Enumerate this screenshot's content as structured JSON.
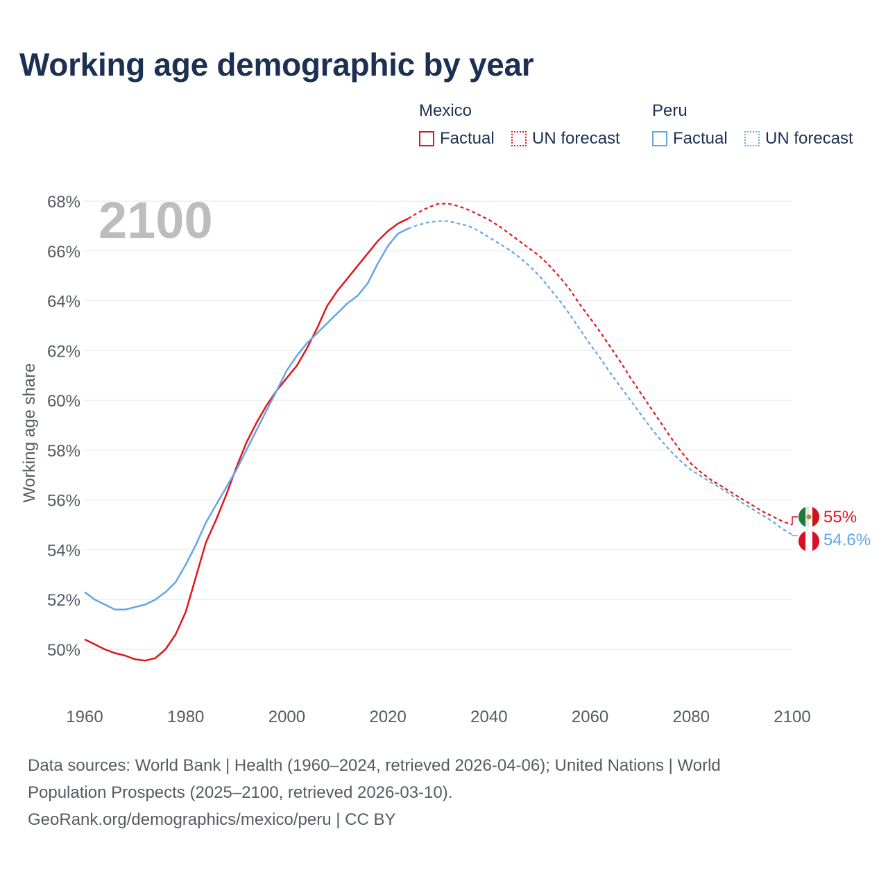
{
  "title": "Working age demographic by year",
  "legend": {
    "mexico": {
      "title": "Mexico",
      "factual": "Factual",
      "forecast": "UN forecast",
      "color": "#e3141b"
    },
    "peru": {
      "title": "Peru",
      "factual": "Factual",
      "forecast": "UN forecast",
      "color": "#63a6e3"
    }
  },
  "chart_data": {
    "type": "line",
    "title": "Working age demographic by year",
    "xlabel": "",
    "ylabel": "Working age share",
    "xlim": [
      1960,
      2100
    ],
    "ylim": [
      48,
      68
    ],
    "x_ticks": [
      1960,
      1980,
      2000,
      2020,
      2040,
      2060,
      2080,
      2100
    ],
    "x_tick_labels": [
      "1960",
      "1980",
      "2000",
      "2020",
      "2040",
      "2060",
      "2080",
      "2100"
    ],
    "y_ticks": [
      50,
      52,
      54,
      56,
      58,
      60,
      62,
      64,
      66,
      68
    ],
    "y_tick_labels": [
      "50%",
      "52%",
      "54%",
      "56%",
      "58%",
      "60%",
      "62%",
      "64%",
      "66%",
      "68%"
    ],
    "year_label": "2100",
    "series": [
      {
        "name": "Mexico",
        "color": "#e3141b",
        "end_label": "55%",
        "factual": {
          "x": [
            1960,
            1962,
            1964,
            1966,
            1968,
            1970,
            1972,
            1974,
            1976,
            1978,
            1980,
            1982,
            1984,
            1986,
            1988,
            1990,
            1992,
            1994,
            1996,
            1998,
            2000,
            2002,
            2004,
            2006,
            2008,
            2010,
            2012,
            2014,
            2016,
            2018,
            2020,
            2022,
            2024
          ],
          "y": [
            50.4,
            50.2,
            50.0,
            49.85,
            49.75,
            49.6,
            49.55,
            49.65,
            50.0,
            50.6,
            51.5,
            52.9,
            54.3,
            55.2,
            56.2,
            57.3,
            58.3,
            59.1,
            59.8,
            60.4,
            60.9,
            61.4,
            62.1,
            62.9,
            63.8,
            64.4,
            64.9,
            65.4,
            65.9,
            66.4,
            66.8,
            67.1,
            67.3
          ]
        },
        "forecast": {
          "x": [
            2024,
            2026,
            2028,
            2030,
            2032,
            2034,
            2036,
            2038,
            2040,
            2042,
            2044,
            2046,
            2048,
            2050,
            2052,
            2054,
            2056,
            2058,
            2060,
            2062,
            2064,
            2066,
            2068,
            2070,
            2072,
            2074,
            2076,
            2078,
            2080,
            2082,
            2084,
            2086,
            2088,
            2090,
            2092,
            2094,
            2096,
            2098,
            2100
          ],
          "y": [
            67.3,
            67.55,
            67.75,
            67.9,
            67.9,
            67.8,
            67.65,
            67.45,
            67.25,
            67.0,
            66.7,
            66.4,
            66.1,
            65.8,
            65.4,
            64.95,
            64.45,
            63.85,
            63.3,
            62.75,
            62.15,
            61.55,
            60.9,
            60.3,
            59.7,
            59.1,
            58.5,
            57.95,
            57.45,
            57.1,
            56.8,
            56.55,
            56.3,
            56.05,
            55.8,
            55.55,
            55.35,
            55.15,
            55.0
          ]
        }
      },
      {
        "name": "Peru",
        "color": "#63a6e3",
        "end_label": "54.6%",
        "factual": {
          "x": [
            1960,
            1962,
            1964,
            1966,
            1968,
            1970,
            1972,
            1974,
            1976,
            1978,
            1980,
            1982,
            1984,
            1986,
            1988,
            1990,
            1992,
            1994,
            1996,
            1998,
            2000,
            2002,
            2004,
            2006,
            2008,
            2010,
            2012,
            2014,
            2016,
            2018,
            2020,
            2022,
            2024
          ],
          "y": [
            52.3,
            52.0,
            51.8,
            51.6,
            51.6,
            51.7,
            51.8,
            52.0,
            52.3,
            52.7,
            53.4,
            54.2,
            55.1,
            55.8,
            56.5,
            57.2,
            58.0,
            58.8,
            59.6,
            60.4,
            61.2,
            61.8,
            62.3,
            62.7,
            63.1,
            63.5,
            63.9,
            64.2,
            64.7,
            65.5,
            66.2,
            66.7,
            66.9
          ]
        },
        "forecast": {
          "x": [
            2024,
            2026,
            2028,
            2030,
            2032,
            2034,
            2036,
            2038,
            2040,
            2042,
            2044,
            2046,
            2048,
            2050,
            2052,
            2054,
            2056,
            2058,
            2060,
            2062,
            2064,
            2066,
            2068,
            2070,
            2072,
            2074,
            2076,
            2078,
            2080,
            2082,
            2084,
            2086,
            2088,
            2090,
            2092,
            2094,
            2096,
            2098,
            2100
          ],
          "y": [
            66.9,
            67.05,
            67.15,
            67.2,
            67.2,
            67.1,
            67.0,
            66.8,
            66.55,
            66.3,
            66.05,
            65.75,
            65.4,
            65.0,
            64.5,
            64.0,
            63.45,
            62.85,
            62.25,
            61.7,
            61.1,
            60.55,
            60.0,
            59.45,
            58.9,
            58.4,
            57.95,
            57.55,
            57.2,
            56.95,
            56.7,
            56.45,
            56.2,
            55.9,
            55.65,
            55.4,
            55.15,
            54.85,
            54.6
          ]
        }
      }
    ]
  },
  "footer": {
    "line1": "Data sources: World Bank | Health (1960–2024, retrieved 2026-04-06); United Nations | World",
    "line2": "Population Prospects (2025–2100, retrieved 2026-03-10).",
    "line3": "GeoRank.org/demographics/mexico/peru | CC BY"
  }
}
